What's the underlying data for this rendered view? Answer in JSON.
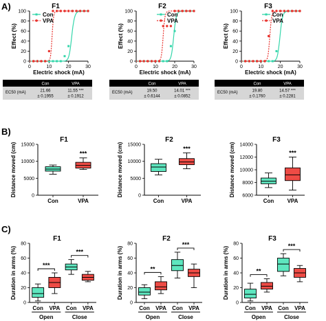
{
  "figure": {
    "panel_labels": [
      "A)",
      "B)",
      "C)"
    ],
    "colors": {
      "con": "#33d6aa",
      "vpa": "#e8312c",
      "con_box": "#5ee6bf",
      "vpa_box": "#ee4b45"
    }
  },
  "chart_data": [
    {
      "panel": "A",
      "id": "A1",
      "type": "line",
      "title": "F1",
      "xlabel": "Electric shock (mA)",
      "ylabel": "Effect (%)",
      "xlim": [
        0,
        30
      ],
      "ylim": [
        0,
        100
      ],
      "xticks": [
        0,
        10,
        20,
        30
      ],
      "yticks": [
        0,
        20,
        40,
        60,
        80,
        100
      ],
      "legend": [
        "Con",
        "VPA"
      ],
      "legend_position": "top-left",
      "series": [
        {
          "name": "Con",
          "ec50": 21.66,
          "points": [
            [
              2,
              0
            ],
            [
              4,
              0
            ],
            [
              6,
              0
            ],
            [
              8,
              0
            ],
            [
              10,
              0
            ],
            [
              12,
              0
            ],
            [
              14,
              0
            ],
            [
              16,
              0
            ],
            [
              18,
              10
            ],
            [
              20,
              30
            ],
            [
              22,
              100
            ],
            [
              24,
              100
            ],
            [
              26,
              100
            ],
            [
              28,
              100
            ],
            [
              30,
              100
            ]
          ]
        },
        {
          "name": "VPA",
          "ec50": 11.55,
          "points": [
            [
              2,
              0
            ],
            [
              4,
              0
            ],
            [
              6,
              0
            ],
            [
              8,
              0
            ],
            [
              10,
              20
            ],
            [
              12,
              100
            ],
            [
              14,
              100
            ],
            [
              16,
              100
            ],
            [
              18,
              100
            ],
            [
              20,
              100
            ],
            [
              22,
              100
            ],
            [
              24,
              100
            ],
            [
              26,
              100
            ],
            [
              28,
              100
            ],
            [
              30,
              100
            ]
          ]
        }
      ],
      "table": {
        "row_label": "EC50 (mA)",
        "headers": [
          "Con",
          "VPA"
        ],
        "values": [
          "21.66",
          "11.55 ***"
        ],
        "errors": [
          "± 0.1955",
          "± 0.1912"
        ]
      }
    },
    {
      "panel": "A",
      "id": "A2",
      "type": "line",
      "title": "F2",
      "xlabel": "Electric shock (mA)",
      "ylabel": "Effect (%)",
      "xlim": [
        0,
        30
      ],
      "ylim": [
        0,
        100
      ],
      "xticks": [
        0,
        10,
        20,
        30
      ],
      "yticks": [
        0,
        20,
        40,
        60,
        80,
        100
      ],
      "legend": [
        "Con",
        "VPA"
      ],
      "legend_position": "top-right",
      "series": [
        {
          "name": "Con",
          "ec50": 19.5,
          "points": [
            [
              2,
              0
            ],
            [
              4,
              0
            ],
            [
              6,
              0
            ],
            [
              8,
              0
            ],
            [
              10,
              0
            ],
            [
              12,
              0
            ],
            [
              14,
              0
            ],
            [
              16,
              0
            ],
            [
              18,
              30
            ],
            [
              20,
              60
            ],
            [
              22,
              100
            ],
            [
              24,
              100
            ],
            [
              26,
              100
            ],
            [
              28,
              100
            ],
            [
              30,
              100
            ]
          ]
        },
        {
          "name": "VPA",
          "ec50": 14.01,
          "points": [
            [
              2,
              0
            ],
            [
              4,
              0
            ],
            [
              6,
              0
            ],
            [
              8,
              0
            ],
            [
              10,
              0
            ],
            [
              12,
              0
            ],
            [
              14,
              70
            ],
            [
              16,
              70
            ],
            [
              18,
              70
            ],
            [
              20,
              100
            ],
            [
              22,
              100
            ],
            [
              24,
              100
            ],
            [
              26,
              100
            ],
            [
              28,
              100
            ],
            [
              30,
              100
            ]
          ]
        }
      ],
      "table": {
        "row_label": "EC50 (mA)",
        "headers": [
          "Con",
          "VPA"
        ],
        "values": [
          "19.50",
          "14.01 ***"
        ],
        "errors": [
          "± 0.6144",
          "± 0.0852"
        ]
      }
    },
    {
      "panel": "A",
      "id": "A3",
      "type": "line",
      "title": "F3",
      "xlabel": "Electric shock (mA)",
      "ylabel": "Effect (%)",
      "xlim": [
        0,
        30
      ],
      "ylim": [
        0,
        100
      ],
      "xticks": [
        0,
        10,
        20,
        30
      ],
      "yticks": [
        0,
        20,
        40,
        60,
        80,
        100
      ],
      "legend": [
        "Con",
        "VPA"
      ],
      "legend_position": "top-right",
      "series": [
        {
          "name": "Con",
          "ec50": 19.8,
          "points": [
            [
              2,
              0
            ],
            [
              4,
              0
            ],
            [
              6,
              0
            ],
            [
              8,
              0
            ],
            [
              10,
              0
            ],
            [
              12,
              0
            ],
            [
              14,
              0
            ],
            [
              16,
              0
            ],
            [
              18,
              20
            ],
            [
              20,
              100
            ],
            [
              22,
              100
            ],
            [
              24,
              100
            ],
            [
              26,
              100
            ],
            [
              28,
              100
            ],
            [
              30,
              100
            ]
          ]
        },
        {
          "name": "VPA",
          "ec50": 14.57,
          "points": [
            [
              2,
              0
            ],
            [
              4,
              0
            ],
            [
              6,
              0
            ],
            [
              8,
              0
            ],
            [
              10,
              0
            ],
            [
              12,
              0
            ],
            [
              14,
              50
            ],
            [
              16,
              100
            ],
            [
              18,
              100
            ],
            [
              20,
              100
            ],
            [
              22,
              100
            ],
            [
              24,
              100
            ],
            [
              26,
              100
            ],
            [
              28,
              100
            ],
            [
              30,
              100
            ]
          ]
        }
      ],
      "table": {
        "row_label": "EC50 (mA)",
        "headers": [
          "Con",
          "VPA"
        ],
        "values": [
          "19.80",
          "14.57 ***"
        ],
        "errors": [
          "± 0.1760",
          "± 0.2281"
        ]
      }
    },
    {
      "panel": "B",
      "id": "B1",
      "type": "box",
      "title": "F1",
      "ylabel": "Distance moved (cm)",
      "ylim": [
        0,
        15000
      ],
      "yticks": [
        0,
        5000,
        10000,
        15000
      ],
      "categories": [
        "Con",
        "VPA"
      ],
      "boxes": [
        {
          "name": "Con",
          "min": 6200,
          "q1": 7100,
          "median": 7700,
          "q3": 8400,
          "max": 8900
        },
        {
          "name": "VPA",
          "min": 7600,
          "q1": 8000,
          "median": 8800,
          "q3": 9700,
          "max": 11000
        }
      ],
      "sig": "***"
    },
    {
      "panel": "B",
      "id": "B2",
      "type": "box",
      "title": "F2",
      "ylabel": "Distance moved (cm)",
      "ylim": [
        0,
        15000
      ],
      "yticks": [
        0,
        5000,
        10000,
        15000
      ],
      "categories": [
        "Con",
        "VPA"
      ],
      "boxes": [
        {
          "name": "Con",
          "min": 6000,
          "q1": 7000,
          "median": 8300,
          "q3": 9300,
          "max": 10600
        },
        {
          "name": "VPA",
          "min": 7800,
          "q1": 9000,
          "median": 9800,
          "q3": 10800,
          "max": 12500
        }
      ],
      "sig": "***"
    },
    {
      "panel": "B",
      "id": "B3",
      "type": "box",
      "title": "F3",
      "ylabel": "Distance moved (cm)",
      "ylim": [
        6000,
        14000
      ],
      "yticks": [
        6000,
        8000,
        10000,
        12000,
        14000
      ],
      "categories": [
        "Con",
        "VPA"
      ],
      "boxes": [
        {
          "name": "Con",
          "min": 7200,
          "q1": 7800,
          "median": 8200,
          "q3": 8700,
          "max": 9500
        },
        {
          "name": "VPA",
          "min": 6800,
          "q1": 8300,
          "median": 9200,
          "q3": 10300,
          "max": 12000
        }
      ],
      "sig": "***"
    },
    {
      "panel": "C",
      "id": "C1",
      "type": "box",
      "title": "F1",
      "ylabel": "Duration in arms (%)",
      "ylim": [
        0,
        80
      ],
      "yticks": [
        0,
        20,
        40,
        60,
        80
      ],
      "categories": [
        "Con",
        "VPA",
        "Con",
        "VPA"
      ],
      "groups": [
        "Open",
        "Close"
      ],
      "boxes": [
        {
          "name": "Con",
          "group": "Open",
          "min": 2,
          "q1": 7,
          "median": 12,
          "q3": 20,
          "max": 25
        },
        {
          "name": "VPA",
          "group": "Open",
          "min": 12,
          "q1": 20,
          "median": 27,
          "q3": 34,
          "max": 40
        },
        {
          "name": "Con",
          "group": "Close",
          "min": 38,
          "q1": 44,
          "median": 48,
          "q3": 52,
          "max": 58
        },
        {
          "name": "VPA",
          "group": "Close",
          "min": 28,
          "q1": 30,
          "median": 34,
          "q3": 38,
          "max": 42
        }
      ],
      "sig": [
        "***",
        "***"
      ]
    },
    {
      "panel": "C",
      "id": "C2",
      "type": "box",
      "title": "F2",
      "ylabel": "Duration in arms (%)",
      "ylim": [
        0,
        80
      ],
      "yticks": [
        0,
        20,
        40,
        60,
        80
      ],
      "categories": [
        "Con",
        "VPA",
        "Con",
        "VPA"
      ],
      "groups": [
        "Open",
        "Close"
      ],
      "boxes": [
        {
          "name": "Con",
          "group": "Open",
          "min": 5,
          "q1": 10,
          "median": 14,
          "q3": 20,
          "max": 24
        },
        {
          "name": "VPA",
          "group": "Open",
          "min": 12,
          "q1": 17,
          "median": 21,
          "q3": 28,
          "max": 35
        },
        {
          "name": "Con",
          "group": "Close",
          "min": 33,
          "q1": 43,
          "median": 50,
          "q3": 58,
          "max": 68
        },
        {
          "name": "VPA",
          "group": "Close",
          "min": 20,
          "q1": 35,
          "median": 40,
          "q3": 45,
          "max": 52
        }
      ],
      "sig": [
        "**",
        "***"
      ]
    },
    {
      "panel": "C",
      "id": "C3",
      "type": "box",
      "title": "F3",
      "ylabel": "Duration in arms (%)",
      "ylim": [
        0,
        80
      ],
      "yticks": [
        0,
        20,
        40,
        60,
        80
      ],
      "categories": [
        "Con",
        "VPA",
        "Con",
        "VPA"
      ],
      "groups": [
        "Open",
        "Close"
      ],
      "boxes": [
        {
          "name": "Con",
          "group": "Open",
          "min": 2,
          "q1": 6,
          "median": 11,
          "q3": 18,
          "max": 26
        },
        {
          "name": "VPA",
          "group": "Open",
          "min": 14,
          "q1": 18,
          "median": 22,
          "q3": 27,
          "max": 32
        },
        {
          "name": "Con",
          "group": "Close",
          "min": 36,
          "q1": 42,
          "median": 52,
          "q3": 60,
          "max": 66
        },
        {
          "name": "VPA",
          "group": "Close",
          "min": 28,
          "q1": 34,
          "median": 40,
          "q3": 46,
          "max": 50
        }
      ],
      "sig": [
        "**",
        "***"
      ]
    }
  ]
}
